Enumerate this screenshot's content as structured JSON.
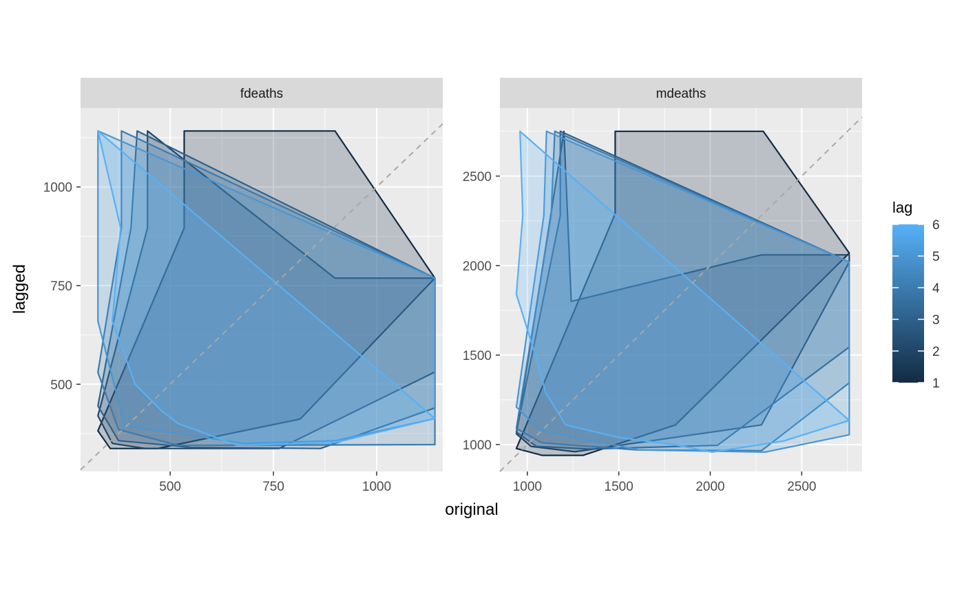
{
  "chart_data": {
    "type": "lag-plot-polygons",
    "xlabel": "original",
    "ylabel": "lagged",
    "legend": {
      "title": "lag",
      "position": "right",
      "min": 1,
      "max": 6,
      "ticks": [
        1,
        2,
        3,
        4,
        5,
        6
      ],
      "tick_labels": [
        "1",
        "2",
        "3",
        "4",
        "5",
        "6"
      ],
      "low_color": "#132B43",
      "high_color": "#56B1F7"
    },
    "reference_line": "y = x (dashed)",
    "grid": true,
    "panels": [
      {
        "strip": "fdeaths",
        "xlim": [
          283,
          1160
        ],
        "ylim": [
          279,
          1200
        ],
        "xticks": [
          500,
          750,
          1000
        ],
        "xtick_labels": [
          "500",
          "750",
          "1000"
        ],
        "yticks": [
          500,
          750,
          1000
        ],
        "ytick_labels": [
          "500",
          "750",
          "1000"
        ],
        "polygons": [
          {
            "lag": 1,
            "points": [
              [
                325,
                382
              ],
              [
                355,
                337
              ],
              [
                470,
                337
              ],
              [
                815,
                412
              ],
              [
                1141,
                769
              ],
              [
                899,
                1142
              ],
              [
                534,
                1142
              ],
              [
                534,
                896
              ]
            ]
          },
          {
            "lag": 2,
            "points": [
              [
                325,
                420
              ],
              [
                360,
                350
              ],
              [
                440,
                337
              ],
              [
                764,
                337
              ],
              [
                1141,
                531
              ],
              [
                1141,
                769
              ],
              [
                899,
                769
              ],
              [
                445,
                1142
              ],
              [
                445,
                896
              ]
            ]
          },
          {
            "lag": 3,
            "points": [
              [
                325,
                445
              ],
              [
                375,
                357
              ],
              [
                550,
                340
              ],
              [
                864,
                337
              ],
              [
                1141,
                440
              ],
              [
                1141,
                769
              ],
              [
                420,
                1142
              ],
              [
                405,
                896
              ]
            ]
          },
          {
            "lag": 4,
            "points": [
              [
                325,
                530
              ],
              [
                375,
                385
              ],
              [
                520,
                345
              ],
              [
                1141,
                347
              ],
              [
                1141,
                413
              ],
              [
                1141,
                769
              ],
              [
                382,
                1142
              ],
              [
                382,
                896
              ]
            ]
          },
          {
            "lag": 5,
            "points": [
              [
                325,
                660
              ],
              [
                390,
                395
              ],
              [
                680,
                350
              ],
              [
                900,
                357
              ],
              [
                1141,
                413
              ],
              [
                1141,
                769
              ],
              [
                325,
                1142
              ],
              [
                325,
                896
              ]
            ]
          },
          {
            "lag": 6,
            "points": [
              [
                325,
                1142
              ],
              [
                380,
                896
              ],
              [
                360,
                660
              ],
              [
                415,
                500
              ],
              [
                480,
                432
              ],
              [
                520,
                400
              ],
              [
                560,
                385
              ],
              [
                663,
                345
              ],
              [
                899,
                352
              ],
              [
                1141,
                413
              ]
            ]
          }
        ]
      },
      {
        "strip": "mdeaths",
        "xlim": [
          850,
          2830
        ],
        "ylim": [
          850,
          2880
        ],
        "xticks": [
          1000,
          1500,
          2000,
          2500
        ],
        "xtick_labels": [
          "1000",
          "1500",
          "2000",
          "2500"
        ],
        "yticks": [
          1000,
          1500,
          2000,
          2500
        ],
        "ytick_labels": [
          "1000",
          "1500",
          "2000",
          "2500"
        ],
        "polygons": [
          {
            "lag": 1,
            "points": [
              [
                940,
                978
              ],
              [
                1080,
                940
              ],
              [
                1305,
                940
              ],
              [
                1810,
                1110
              ],
              [
                2760,
                2070
              ],
              [
                2290,
                2750
              ],
              [
                1480,
                2750
              ],
              [
                1480,
                2290
              ]
            ]
          },
          {
            "lag": 2,
            "points": [
              [
                940,
                1060
              ],
              [
                1020,
                990
              ],
              [
                1260,
                960
              ],
              [
                2280,
                1110
              ],
              [
                2760,
                2020
              ],
              [
                2760,
                2060
              ],
              [
                2280,
                2060
              ],
              [
                1240,
                1800
              ],
              [
                1200,
                2750
              ]
            ]
          },
          {
            "lag": 3,
            "points": [
              [
                940,
                1070
              ],
              [
                1050,
                990
              ],
              [
                1340,
                975
              ],
              [
                2040,
                996
              ],
              [
                2760,
                1545
              ],
              [
                2760,
                2020
              ],
              [
                1180,
                2750
              ],
              [
                1180,
                2280
              ]
            ]
          },
          {
            "lag": 4,
            "points": [
              [
                940,
                1090
              ],
              [
                1080,
                1010
              ],
              [
                1600,
                970
              ],
              [
                2280,
                966
              ],
              [
                2760,
                1345
              ],
              [
                2760,
                2020
              ],
              [
                1150,
                2750
              ],
              [
                1130,
                2280
              ]
            ]
          },
          {
            "lag": 5,
            "points": [
              [
                940,
                1210
              ],
              [
                1070,
                1080
              ],
              [
                1610,
                970
              ],
              [
                2300,
                958
              ],
              [
                2760,
                1055
              ],
              [
                2760,
                2020
              ],
              [
                1105,
                2750
              ],
              [
                1090,
                2280
              ]
            ]
          },
          {
            "lag": 6,
            "points": [
              [
                960,
                2750
              ],
              [
                975,
                2280
              ],
              [
                940,
                1840
              ],
              [
                1050,
                1480
              ],
              [
                1100,
                1290
              ],
              [
                1210,
                1110
              ],
              [
                1500,
                1040
              ],
              [
                1800,
                1000
              ],
              [
                2010,
                958
              ],
              [
                2400,
                1020
              ],
              [
                2760,
                1135
              ]
            ]
          }
        ]
      }
    ]
  }
}
